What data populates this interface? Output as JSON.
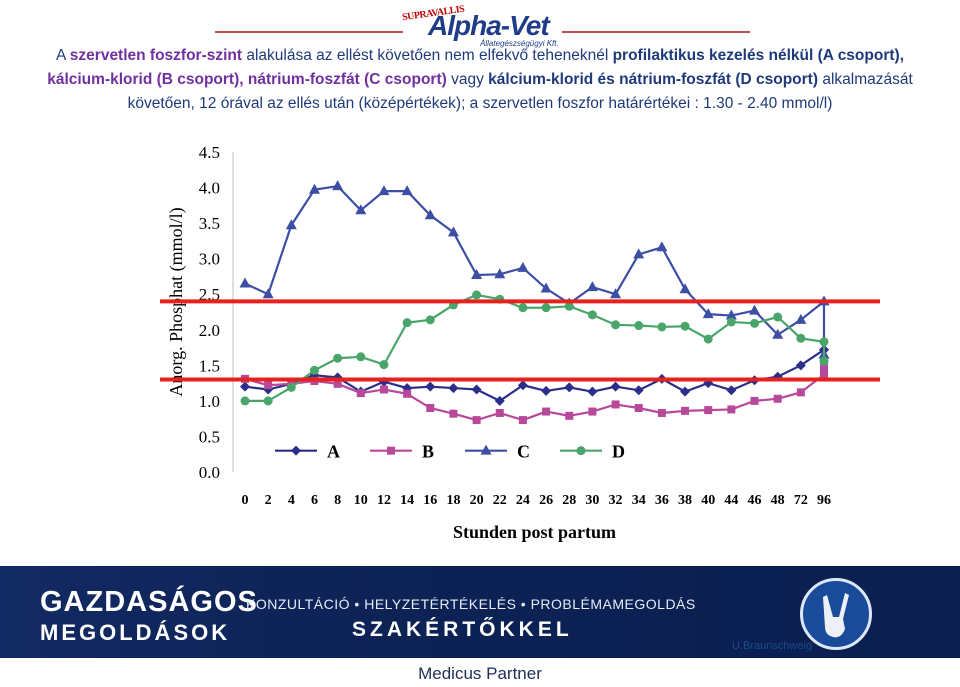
{
  "logo": {
    "super": "SUPRAVALLIS",
    "main": "Alpha-Vet",
    "sub": "Állategészségügyi Kft."
  },
  "caption": {
    "p1": "A ",
    "p2": "szervetlen foszfor-szint",
    "p3": " alakulása az ellést követően nem elfekvő teheneknél ",
    "p4": "profilaktikus kezelés nélkül (A csoport), ",
    "p5": "kálcium-klorid (B csoport), ",
    "p6": "nátrium-foszfát (C csoport)",
    "p7": " vagy ",
    "p8": "kálcium-klorid és nátrium-foszfát (D csoport)",
    "p9": " alkalmazását követően, 12 órával az ellés után (középértékek); a szervetlen foszfor határértékei : 1.30 - 2.40 mmol/l)"
  },
  "chart_data": {
    "type": "line",
    "xlabel": "Stunden post partum",
    "ylabel": "Anorg. Phosphat (mmol/l)",
    "categories": [
      "0",
      "2",
      "4",
      "6",
      "8",
      "10",
      "12",
      "14",
      "16",
      "18",
      "20",
      "22",
      "24",
      "26",
      "28",
      "30",
      "32",
      "34",
      "36",
      "38",
      "40",
      "44",
      "46",
      "48",
      "72",
      "96"
    ],
    "yticks": [
      "0.0",
      "0.5",
      "1.0",
      "1.5",
      "2.0",
      "2.5",
      "3.0",
      "3.5",
      "4.0",
      "4.5"
    ],
    "ylim": [
      0,
      4.5
    ],
    "grid": false,
    "legend": "bottom",
    "reference_lines": [
      1.3,
      2.4
    ],
    "reference_color": "#e8211d",
    "series": [
      {
        "name": "A",
        "color": "#2b2f8a",
        "marker": "diamond",
        "values": [
          1.2,
          1.16,
          1.24,
          1.36,
          1.33,
          1.13,
          1.27,
          1.18,
          1.2,
          1.18,
          1.16,
          1.0,
          1.22,
          1.14,
          1.19,
          1.13,
          1.2,
          1.15,
          1.31,
          1.13,
          1.25,
          1.15,
          1.29,
          1.34,
          1.5,
          1.72
        ]
      },
      {
        "name": "B",
        "color": "#b8489a",
        "marker": "square",
        "values": [
          1.31,
          1.22,
          1.24,
          1.28,
          1.24,
          1.11,
          1.16,
          1.1,
          0.9,
          0.82,
          0.73,
          0.83,
          0.73,
          0.85,
          0.79,
          0.85,
          0.95,
          0.9,
          0.83,
          0.86,
          0.87,
          0.88,
          1.0,
          1.03,
          1.12,
          1.37
        ]
      },
      {
        "name": "C",
        "color": "#3c4fa5",
        "marker": "triangle",
        "values": [
          2.65,
          2.5,
          3.47,
          3.97,
          4.02,
          3.68,
          3.95,
          3.95,
          3.61,
          3.37,
          2.77,
          2.78,
          2.87,
          2.58,
          2.37,
          2.6,
          2.5,
          3.06,
          3.16,
          2.57,
          2.22,
          2.2,
          2.27,
          1.93,
          2.14,
          2.4
        ]
      },
      {
        "name": "D",
        "color": "#4aa56b",
        "marker": "circle",
        "values": [
          1.0,
          1.0,
          1.19,
          1.43,
          1.6,
          1.62,
          1.51,
          2.1,
          2.14,
          2.35,
          2.49,
          2.43,
          2.31,
          2.31,
          2.33,
          2.21,
          2.07,
          2.06,
          2.04,
          2.05,
          1.87,
          2.11,
          2.09,
          2.18,
          1.88,
          1.83
        ]
      }
    ],
    "tail_after_96": {
      "A": 1.72,
      "B": 1.47,
      "C": 1.65,
      "D": 1.56
    }
  },
  "banner": {
    "title1": "GAZDASÁGOS",
    "title2": "MEGOLDÁSOK",
    "line1": "KONZULTÁCIÓ • HELYZETÉRTÉKELÉS • PROBLÉMAMEGOLDÁS",
    "line2": "SZAKÉRTŐKKEL",
    "credit": "U.Braunschweig"
  },
  "footer": "Medicus Partner"
}
